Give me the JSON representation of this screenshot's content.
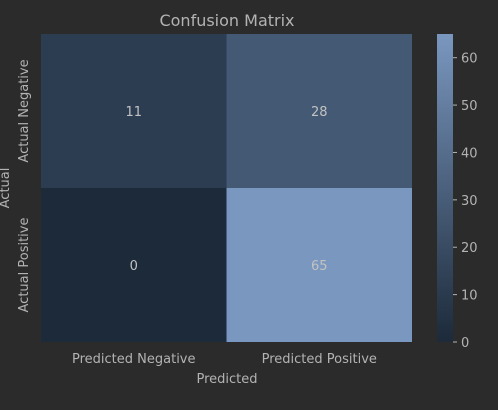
{
  "chart_data": {
    "type": "heatmap",
    "title": "Confusion Matrix",
    "xlabel": "Predicted",
    "ylabel": "Actual",
    "x_categories": [
      "Predicted Negative",
      "Predicted Positive"
    ],
    "y_categories": [
      "Actual Negative",
      "Actual Positive"
    ],
    "values": [
      [
        11,
        28
      ],
      [
        0,
        65
      ]
    ],
    "colorbar": {
      "min": 0,
      "max": 65,
      "ticks": [
        0,
        10,
        20,
        30,
        40,
        50,
        60
      ]
    },
    "colors": {
      "low": "#1c2a3a",
      "high": "#7a97bf",
      "background": "#2b2b2b",
      "text": "#b3b3b3"
    },
    "grid": false,
    "legend": "colorbar-right"
  }
}
